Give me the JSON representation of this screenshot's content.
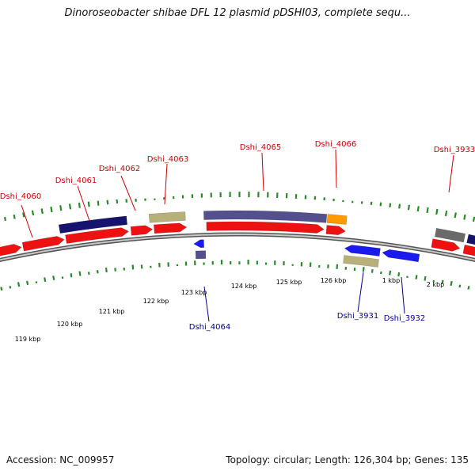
{
  "title": "Dinoroseobacter shibae DFL 12 plasmid pDSHI03, complete sequ...",
  "footer": {
    "accession": "Accession: NC_009957",
    "summary": "Topology: circular; Length: 126,304 bp; Genes: 135"
  },
  "colors": {
    "forward_cds": "#ee1111",
    "reverse_cds": "#1a1aee",
    "backbone": "#808080",
    "tick": "#2a8a2a",
    "gc_navy": "#14146e",
    "gc_purple": "#54508e",
    "gc_khaki": "#b8b07a",
    "gc_orange": "#ff9900",
    "gc_gray": "#6a6a6a",
    "forward_label": "#cc0000",
    "reverse_label": "#000099"
  },
  "ticks": [
    {
      "label": "119 kbp"
    },
    {
      "label": "120 kbp"
    },
    {
      "label": "121 kbp"
    },
    {
      "label": "122 kbp"
    },
    {
      "label": "123 kbp"
    },
    {
      "label": "124 kbp"
    },
    {
      "label": "125 kbp"
    },
    {
      "label": "126 kbp"
    },
    {
      "label": "1 kbp"
    },
    {
      "label": "2 kbp"
    }
  ],
  "gene_labels": {
    "forward": [
      "Dshi_4060",
      "Dshi_4061",
      "Dshi_4062",
      "Dshi_4063",
      "Dshi_4065",
      "Dshi_4066",
      "Dshi_3933"
    ],
    "reverse": [
      "Dshi_4064",
      "Dshi_3931",
      "Dshi_3932"
    ]
  }
}
